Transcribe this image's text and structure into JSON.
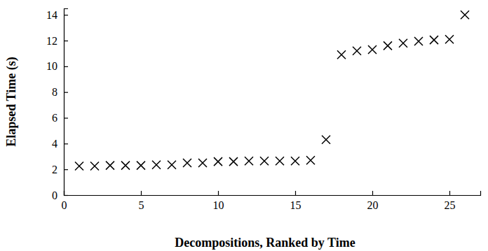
{
  "chart_data": {
    "type": "scatter",
    "x_label": "Decompositions, Ranked by Time",
    "y_label": "Elapsed Time (s)",
    "x": [
      1,
      2,
      3,
      4,
      5,
      6,
      7,
      8,
      9,
      10,
      11,
      12,
      13,
      14,
      15,
      16,
      17,
      18,
      19,
      20,
      21,
      22,
      23,
      24,
      25,
      26
    ],
    "values": [
      2.25,
      2.25,
      2.3,
      2.3,
      2.3,
      2.35,
      2.35,
      2.5,
      2.5,
      2.6,
      2.6,
      2.65,
      2.65,
      2.65,
      2.65,
      2.7,
      4.3,
      10.9,
      11.2,
      11.3,
      11.6,
      11.8,
      11.95,
      12.05,
      12.1,
      14.0
    ],
    "color": "#000000",
    "marker": "x",
    "xlim": [
      0,
      27
    ],
    "xticks": [
      0,
      5,
      10,
      15,
      20,
      25
    ],
    "ylim": [
      0,
      14.5
    ],
    "yticks": [
      0,
      2,
      4,
      6,
      8,
      10,
      12,
      14
    ],
    "grid": false
  }
}
